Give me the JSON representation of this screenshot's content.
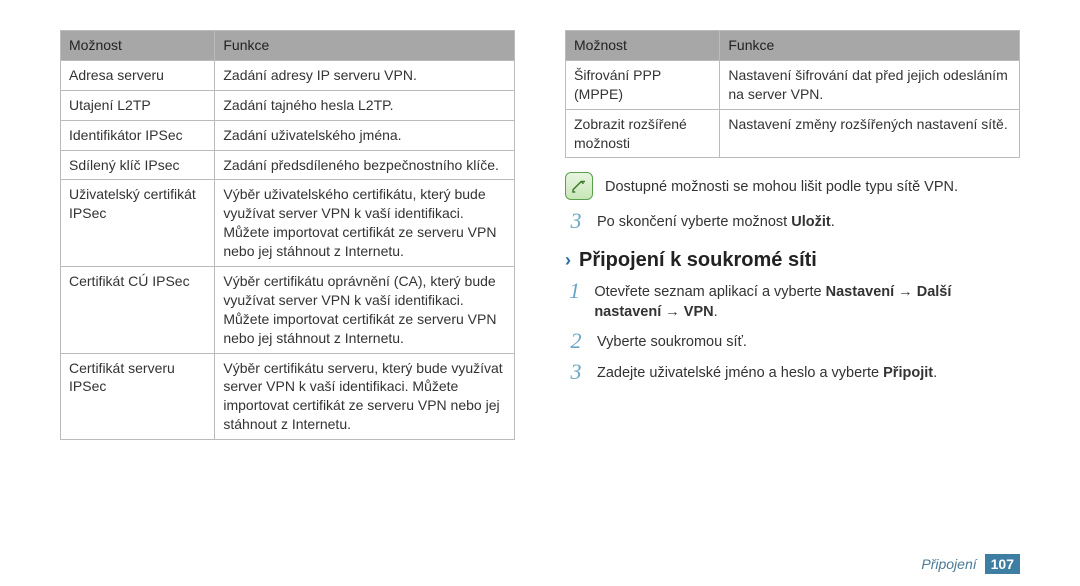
{
  "left": {
    "headers": [
      "Možnost",
      "Funkce"
    ],
    "rows": [
      {
        "opt": "Adresa serveru",
        "fn": "Zadání adresy IP serveru VPN."
      },
      {
        "opt": "Utajení L2TP",
        "fn": "Zadání tajného hesla L2TP."
      },
      {
        "opt": "Identifikátor IPSec",
        "fn": "Zadání uživatelského jména."
      },
      {
        "opt": "Sdílený klíč IPsec",
        "fn": "Zadání předsdíleného bezpečnostního klíče."
      },
      {
        "opt": "Uživatelský certifikát IPSec",
        "fn": "Výběr uživatelského certifikátu, který bude využívat server VPN k vaší identifikaci. Můžete importovat certifikát ze serveru VPN nebo jej stáhnout z Internetu."
      },
      {
        "opt": "Certifikát CÚ IPSec",
        "fn": "Výběr certifikátu oprávnění (CA), který bude využívat server VPN k vaší identifikaci. Můžete importovat certifikát ze serveru VPN nebo jej stáhnout z Internetu."
      },
      {
        "opt": "Certifikát serveru IPSec",
        "fn": "Výběr certifikátu serveru, který bude využívat server VPN k vaší identifikaci. Můžete importovat certifikát ze serveru VPN nebo jej stáhnout z Internetu."
      }
    ]
  },
  "right": {
    "headers": [
      "Možnost",
      "Funkce"
    ],
    "rows": [
      {
        "opt": "Šifrování PPP (MPPE)",
        "fn": "Nastavení šifrování dat před jejich odesláním na server VPN."
      },
      {
        "opt": "Zobrazit rozšířené možnosti",
        "fn": "Nastavení změny rozšířených nastavení sítě."
      }
    ],
    "note": "Dostupné možnosti se mohou lišit podle typu sítě VPN.",
    "step3_prefix": "Po skončení vyberte možnost ",
    "step3_bold": "Uložit",
    "step3_suffix": ".",
    "section_title": "Připojení k soukromé síti",
    "s1_a": "Otevřete seznam aplikací a vyberte ",
    "s1_b": "Nastavení",
    "s1_c": " → ",
    "s1_d": "Další nastavení",
    "s1_e": " → ",
    "s1_f": "VPN",
    "s1_g": ".",
    "s2": "Vyberte soukromou síť.",
    "s3_a": "Zadejte uživatelské jméno a heslo a vyberte ",
    "s3_b": "Připojit",
    "s3_c": "."
  },
  "footer": {
    "label": "Připojení",
    "page": "107"
  }
}
